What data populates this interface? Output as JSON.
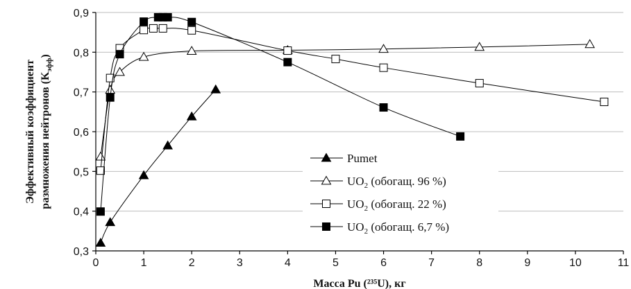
{
  "chart_data": {
    "type": "line",
    "xlabel": "Масса Pu (²³⁵U), кг",
    "ylabel_line1": "Эффективный коэффициент",
    "ylabel_line2": "размножения нейтронов (K",
    "ylabel_sub": "эфф",
    "ylabel_close": ")",
    "xlim": [
      0,
      11
    ],
    "ylim": [
      0.3,
      0.9
    ],
    "x_ticks": [
      "0",
      "1",
      "2",
      "3",
      "4",
      "5",
      "6",
      "7",
      "8",
      "9",
      "10",
      "11"
    ],
    "y_ticks": [
      "0,3",
      "0,4",
      "0,5",
      "0,6",
      "0,7",
      "0,8",
      "0,9"
    ],
    "grid": "horizontal",
    "legend_position": "bottom-center",
    "series": [
      {
        "name": "Pumet",
        "legend_text": "Pumet",
        "legend_sub": "",
        "legend_rest": "",
        "marker": "triangle-filled",
        "x": [
          0.1,
          0.3,
          1.0,
          1.5,
          2.0,
          2.5
        ],
        "y": [
          0.32,
          0.372,
          0.49,
          0.565,
          0.638,
          0.706
        ]
      },
      {
        "name": "UO2 (обогащ. 96 %)",
        "legend_text": "UO",
        "legend_sub": "2",
        "legend_rest": " (обогащ. 96 %)",
        "marker": "triangle-open",
        "x": [
          0.1,
          0.3,
          0.5,
          1.0,
          2.0,
          4.0,
          6.0,
          8.0,
          10.3
        ],
        "y": [
          0.537,
          0.705,
          0.75,
          0.788,
          0.803,
          0.805,
          0.808,
          0.813,
          0.82
        ]
      },
      {
        "name": "UO2 (обогащ. 22 %)",
        "legend_text": "UO",
        "legend_sub": "2",
        "legend_rest": " (обогащ. 22 %)",
        "marker": "square-open",
        "x": [
          0.1,
          0.3,
          0.5,
          1.0,
          1.2,
          1.4,
          2.0,
          4.0,
          5.0,
          6.0,
          8.0,
          10.6
        ],
        "y": [
          0.502,
          0.735,
          0.81,
          0.856,
          0.86,
          0.86,
          0.855,
          0.804,
          0.783,
          0.761,
          0.722,
          0.675
        ]
      },
      {
        "name": "UO2 (обогащ. 6,7 %)",
        "legend_text": "UO",
        "legend_sub": "2",
        "legend_rest": " (обогащ. 6,7 %)",
        "marker": "square-filled",
        "x": [
          0.1,
          0.3,
          0.5,
          1.0,
          1.3,
          1.4,
          1.5,
          2.0,
          4.0,
          6.0,
          7.6
        ],
        "y": [
          0.399,
          0.686,
          0.795,
          0.877,
          0.888,
          0.888,
          0.888,
          0.876,
          0.775,
          0.661,
          0.588
        ]
      }
    ]
  }
}
